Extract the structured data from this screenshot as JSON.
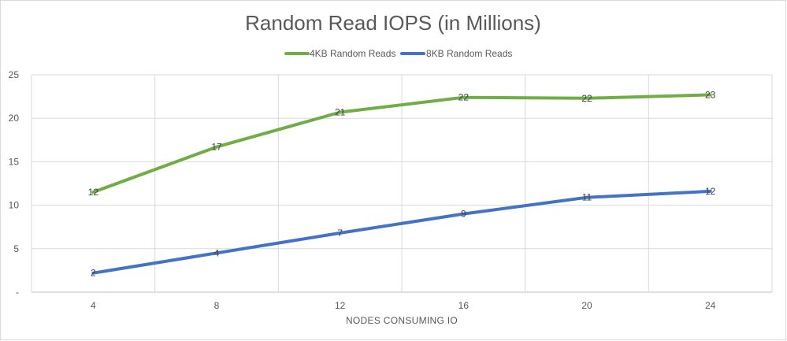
{
  "chart_data": {
    "type": "line",
    "title": "Random Read IOPS (in Millions)",
    "xlabel": "NODES CONSUMING IO",
    "ylabel": "",
    "x": [
      4,
      8,
      12,
      16,
      20,
      24
    ],
    "x_tick_labels": [
      "4",
      "8",
      "12",
      "16",
      "20",
      "24"
    ],
    "y_tick_labels": [
      "-",
      "5",
      "10",
      "15",
      "20",
      "25"
    ],
    "ylim": [
      0,
      25
    ],
    "grid": true,
    "legend_position": "top",
    "series": [
      {
        "name": "4KB Random Reads",
        "color": "#70ad47",
        "values": [
          11.5,
          16.7,
          20.7,
          22.4,
          22.3,
          22.7
        ],
        "labels": [
          "12",
          "17",
          "21",
          "22",
          "22",
          "23"
        ]
      },
      {
        "name": "8KB Random Reads",
        "color": "#4472c4",
        "values": [
          2.2,
          4.5,
          6.8,
          9.0,
          10.9,
          11.6
        ],
        "labels": [
          "2",
          "4",
          "7",
          "9",
          "11",
          "12"
        ]
      }
    ]
  }
}
